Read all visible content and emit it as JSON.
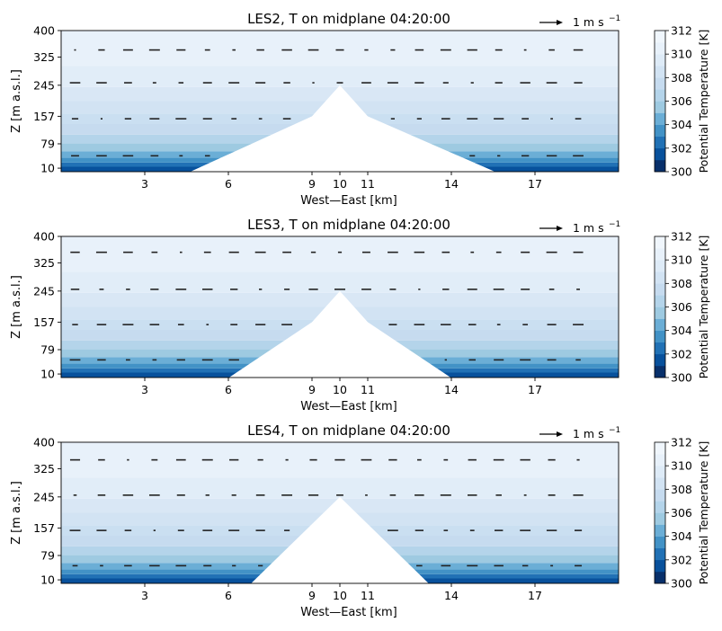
{
  "chart_data": [
    {
      "type": "contour",
      "title": "LES2, T on midplane 04:20:00",
      "xlabel": "West—East [km]",
      "ylabel": "Z [m a.s.l.]",
      "x_ticks": [
        "3",
        "6",
        "9",
        "10",
        "11",
        "14",
        "17"
      ],
      "x_tick_values": [
        3,
        6,
        9,
        10,
        11,
        14,
        17
      ],
      "y_ticks": [
        "10",
        "79",
        "157",
        "245",
        "325",
        "400"
      ],
      "y_tick_values": [
        10,
        79,
        157,
        245,
        325,
        400
      ],
      "xlim": [
        0,
        20
      ],
      "ylim": [
        0,
        400
      ],
      "mountain": {
        "base_left_km": 4.6,
        "base_right_km": 15.6,
        "peak_km": 10,
        "peak_z": 245,
        "shoulder_z": 157,
        "shoulder_left_km": 9,
        "shoulder_right_km": 11
      },
      "quiver_key": {
        "label": "1 m s",
        "exponent": "−1"
      },
      "vector_rows_z": [
        345,
        252,
        150,
        45
      ],
      "colorbar": {
        "label": "Potential Temperature [K]",
        "ticks": [
          "300",
          "302",
          "304",
          "306",
          "308",
          "310",
          "312"
        ],
        "range": [
          300,
          312
        ]
      }
    },
    {
      "type": "contour",
      "title": "LES3, T on midplane 04:20:00",
      "xlabel": "West—East [km]",
      "ylabel": "Z [m a.s.l.]",
      "x_ticks": [
        "3",
        "6",
        "9",
        "10",
        "11",
        "14",
        "17"
      ],
      "x_tick_values": [
        3,
        6,
        9,
        10,
        11,
        14,
        17
      ],
      "y_ticks": [
        "10",
        "79",
        "157",
        "245",
        "325",
        "400"
      ],
      "y_tick_values": [
        10,
        79,
        157,
        245,
        325,
        400
      ],
      "xlim": [
        0,
        20
      ],
      "ylim": [
        0,
        400
      ],
      "mountain": {
        "base_left_km": 6,
        "base_right_km": 14,
        "peak_km": 10,
        "peak_z": 245,
        "shoulder_z": 157,
        "shoulder_left_km": 9,
        "shoulder_right_km": 11
      },
      "quiver_key": {
        "label": "1 m s",
        "exponent": "−1"
      },
      "vector_rows_z": [
        355,
        250,
        150,
        50
      ],
      "colorbar": {
        "label": "Potential Temperature [K]",
        "ticks": [
          "300",
          "302",
          "304",
          "306",
          "308",
          "310",
          "312"
        ],
        "range": [
          300,
          312
        ]
      }
    },
    {
      "type": "contour",
      "title": "LES4, T on midplane 04:20:00",
      "xlabel": "West—East [km]",
      "ylabel": "Z [m a.s.l.]",
      "x_ticks": [
        "3",
        "6",
        "9",
        "10",
        "11",
        "14",
        "17"
      ],
      "x_tick_values": [
        3,
        6,
        9,
        10,
        11,
        14,
        17
      ],
      "y_ticks": [
        "10",
        "79",
        "157",
        "245",
        "325",
        "400"
      ],
      "y_tick_values": [
        10,
        79,
        157,
        245,
        325,
        400
      ],
      "xlim": [
        0,
        20
      ],
      "ylim": [
        0,
        400
      ],
      "mountain": {
        "base_left_km": 6.8,
        "base_right_km": 13.2,
        "peak_km": 10,
        "peak_z": 245,
        "shoulder_z": 245,
        "shoulder_left_km": 10,
        "shoulder_right_km": 10
      },
      "quiver_key": {
        "label": "1 m s",
        "exponent": "−1"
      },
      "vector_rows_z": [
        350,
        250,
        150,
        50
      ],
      "colorbar": {
        "label": "Potential Temperature [K]",
        "ticks": [
          "300",
          "302",
          "304",
          "306",
          "308",
          "310",
          "312"
        ],
        "range": [
          300,
          312
        ]
      }
    }
  ]
}
